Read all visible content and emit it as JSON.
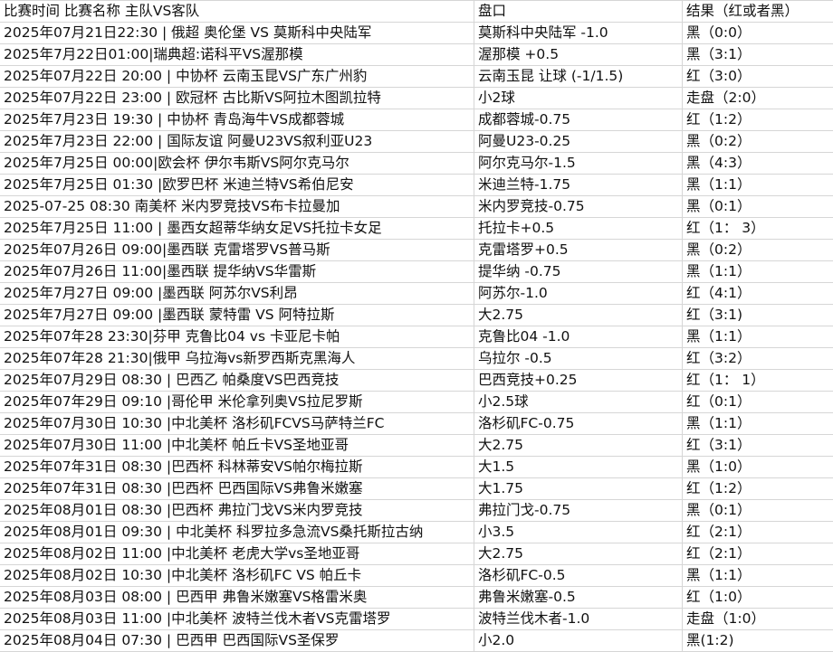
{
  "header": {
    "match": "比赛时间 比赛名称 主队VS客队",
    "handicap": "盘口",
    "result": "结果（红或者黑）"
  },
  "rows": [
    {
      "match": "2025年07月21日22:30 | 俄超 奥伦堡 VS 莫斯科中央陆军",
      "handicap": "莫斯科中央陆军 -1.0",
      "result": "黑（0:0）"
    },
    {
      "match": "2025年7月22日01:00|瑞典超:诺科平VS渥那模",
      "handicap": "渥那模 +0.5",
      "result": "黑（3:1）"
    },
    {
      "match": "2025年07月22日 20:00 | 中协杯 云南玉昆VS广东广州豹",
      "handicap": "云南玉昆 让球 (-1/1.5)",
      "result": "红（3:0）"
    },
    {
      "match": "2025年07月22日 23:00 | 欧冠杯 古比斯VS阿拉木图凯拉特",
      "handicap": "小2球",
      "result": "走盘（2:0）"
    },
    {
      "match": "2025年7月23日 19:30 | 中协杯 青岛海牛VS成都蓉城",
      "handicap": "成都蓉城-0.75",
      "result": "红（1:2）"
    },
    {
      "match": "2025年7月23日 22:00 | 国际友谊 阿曼U23VS叙利亚U23",
      "handicap": "阿曼U23-0.25",
      "result": "黑（0:2）"
    },
    {
      "match": "2025年7月25日 00:00|欧会杯 伊尔韦斯VS阿尔克马尔",
      "handicap": "阿尔克马尔-1.5",
      "result": "黑（4:3）"
    },
    {
      "match": "2025年7月25日 01:30 |欧罗巴杯 米迪兰特VS希伯尼安",
      "handicap": "米迪兰特-1.75",
      "result": "黑（1:1）"
    },
    {
      "match": "2025-07-25 08:30 南美杯 米内罗竞技VS布卡拉曼加",
      "handicap": "米内罗竞技-0.75",
      "result": "黑（0:1）"
    },
    {
      "match": "2025年7月25日 11:00 |  墨西女超蒂华纳女足VS托拉卡女足",
      "handicap": "托拉卡+0.5",
      "result": "红（1： 3）"
    },
    {
      "match": "2025年07月26日 09:00|墨西联 克雷塔罗VS普马斯",
      "handicap": "克雷塔罗+0.5",
      "result": "黑（0:2）"
    },
    {
      "match": "2025年07月26日 11:00|墨西联 提华纳VS华雷斯",
      "handicap": "提华纳 -0.75",
      "result": "黑（1:1）"
    },
    {
      "match": "2025年7月27日 09:00 |墨西联 阿苏尔VS利昂",
      "handicap": "阿苏尔-1.0",
      "result": "红（4:1）"
    },
    {
      "match": "2025年7月27日 09:00 |墨西联 蒙特雷 VS 阿特拉斯",
      "handicap": "大2.75",
      "result": "红（3:1)"
    },
    {
      "match": "2025年07年28 23:30|芬甲 克鲁比04 vs 卡亚尼卡帕",
      "handicap": "克鲁比04 -1.0",
      "result": "黑（1:1）"
    },
    {
      "match": "2025年07年28 21:30|俄甲 乌拉海vs新罗西斯克黑海人",
      "handicap": "乌拉尔 -0.5",
      "result": "红（3:2）"
    },
    {
      "match": "2025年07月29日 08:30 |  巴西乙 帕桑度VS巴西竞技",
      "handicap": "巴西竞技+0.25",
      "result": "红（1： 1）"
    },
    {
      "match": "2025年07年29日 09:10 |哥伦甲 米伦拿列奥VS拉尼罗斯",
      "handicap": "小2.5球",
      "result": "红（0:1）"
    },
    {
      "match": "2025年07月30日 10:30 |中北美杯 洛杉矶FCVS马萨特兰FC",
      "handicap": "洛杉矶FC-0.75",
      "result": "黑（1:1）"
    },
    {
      "match": "2025年07月30日 11:00 |中北美杯 帕丘卡VS圣地亚哥",
      "handicap": "大2.75",
      "result": "红（3:1）"
    },
    {
      "match": "2025年07年31日 08:30 |巴西杯 科林蒂安VS帕尔梅拉斯",
      "handicap": "大1.5",
      "result": "黑（1:0）"
    },
    {
      "match": "2025年07年31日 08:30 |巴西杯 巴西国际VS弗鲁米嫩塞",
      "handicap": "大1.75",
      "result": "红（1:2）"
    },
    {
      "match": "2025年08月01日 08:30 |巴西杯 弗拉门戈VS米内罗竞技",
      "handicap": "弗拉门戈-0.75",
      "result": "黑（0:1）"
    },
    {
      "match": "2025年08月01日 09:30 | 中北美杯 科罗拉多急流VS桑托斯拉古纳",
      "handicap": "小3.5",
      "result": "红（2:1）"
    },
    {
      "match": "2025年08月02日 11:00 |中北美杯 老虎大学vs圣地亚哥",
      "handicap": "大2.75",
      "result": "红（2:1）"
    },
    {
      "match": "2025年08月02日 10:30 |中北美杯 洛杉矶FC VS 帕丘卡",
      "handicap": "洛杉矶FC-0.5",
      "result": "黑（1:1）"
    },
    {
      "match": "2025年08月03日 08:00 |  巴西甲 弗鲁米嫩塞VS格雷米奥",
      "handicap": "弗鲁米嫩塞-0.5",
      "result": "红（1:0）"
    },
    {
      "match": "2025年08月03日 11:00 |中北美杯 波特兰伐木者VS克雷塔罗",
      "handicap": "波特兰伐木者-1.0",
      "result": "走盘（1:0）"
    },
    {
      "match": "2025年08月04日 07:30 | 巴西甲 巴西国际VS圣保罗",
      "handicap": "小2.0",
      "result": "黑(1:2)"
    }
  ]
}
